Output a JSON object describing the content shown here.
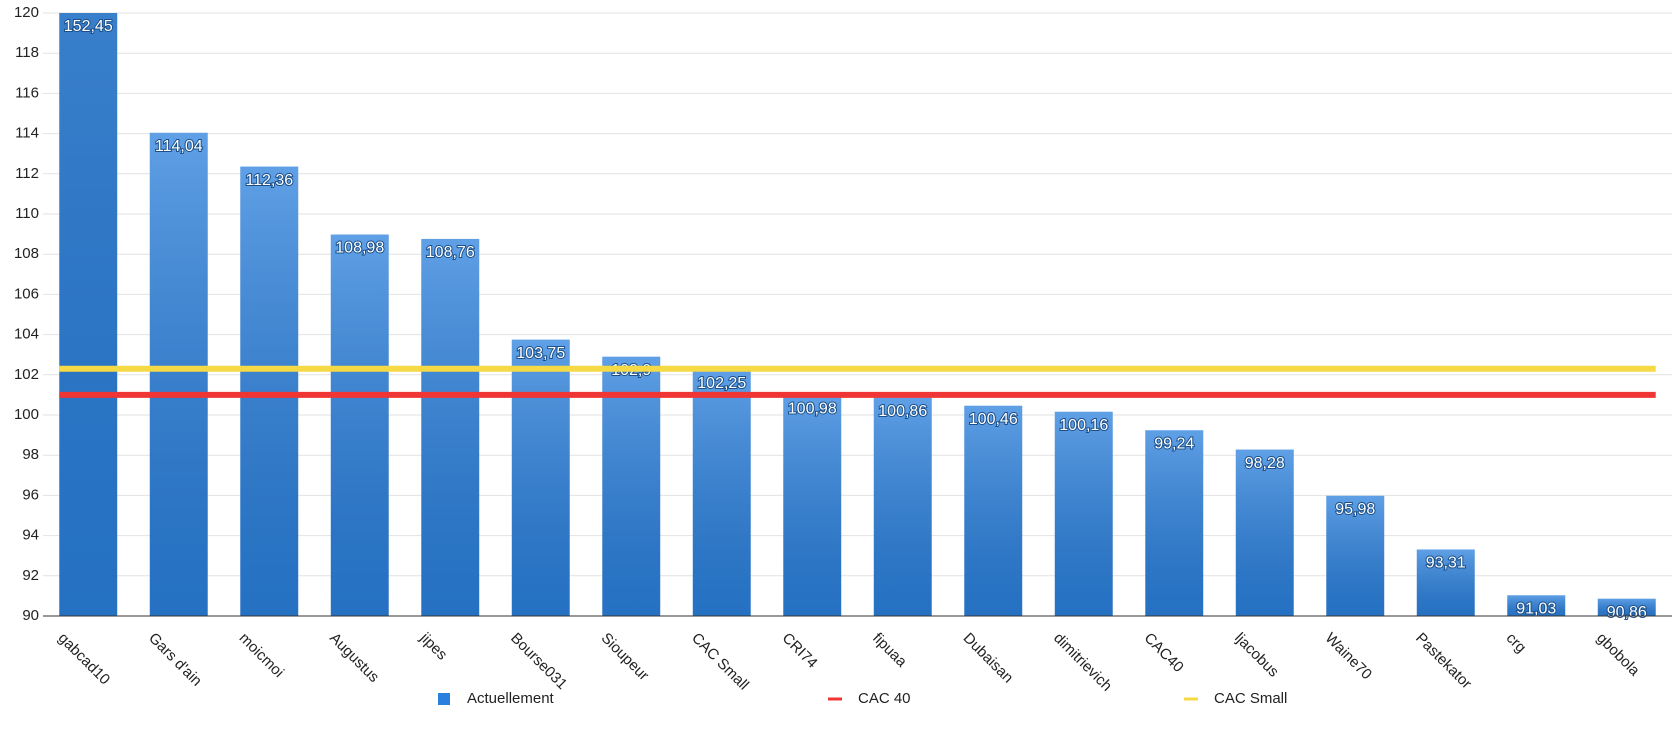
{
  "chart_data": {
    "type": "bar",
    "categories": [
      "gabcad10",
      "Gars d'ain",
      "moicmoi",
      "Augustus",
      "jipes",
      "Bourse031",
      "Sioupeur",
      "CAC Small",
      "CRI74",
      "fipuaa",
      "Dubaisan",
      "dimitrievich",
      "CAC40",
      "ljacobus",
      "Waine70",
      "Pastekator",
      "crg",
      "gbobola"
    ],
    "series": [
      {
        "name": "Actuellement",
        "color": "#2a80dd",
        "values": [
          152.45,
          114.04,
          112.36,
          108.98,
          108.76,
          103.75,
          102.9,
          102.25,
          100.98,
          100.86,
          100.46,
          100.16,
          99.24,
          98.28,
          95.98,
          93.31,
          91.03,
          90.86
        ],
        "value_labels": [
          "152,45",
          "114,04",
          "112,36",
          "108,98",
          "108,76",
          "103,75",
          "102,9",
          "102,25",
          "100,98",
          "100,86",
          "100,46",
          "100,16",
          "99,24",
          "98,28",
          "95,98",
          "93,31",
          "91,03",
          "90,86"
        ]
      }
    ],
    "reference_lines": [
      {
        "name": "CAC 40",
        "color": "#f03535",
        "value": 101
      },
      {
        "name": "CAC Small",
        "color": "#f5d945",
        "value": 102.3
      }
    ],
    "ylim": [
      90,
      120
    ],
    "yticks": [
      90,
      92,
      94,
      96,
      98,
      100,
      102,
      104,
      106,
      108,
      110,
      112,
      114,
      116,
      118,
      120
    ],
    "grid": true
  }
}
